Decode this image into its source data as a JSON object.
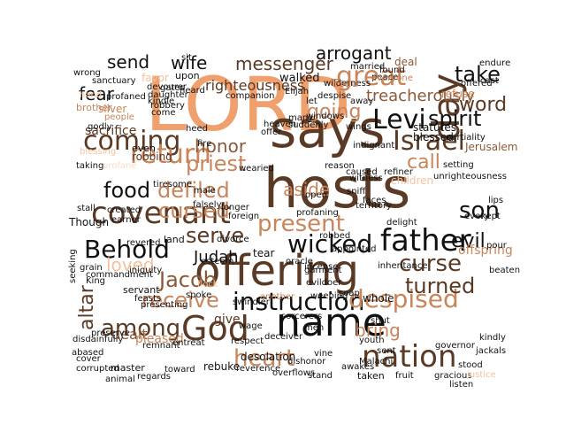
{
  "palette": {
    "black": "#111111",
    "dark_brown": "#5a3a24",
    "brown": "#8a5a38",
    "tan": "#c9845a",
    "peach": "#f0a06c",
    "light_peach": "#f6c29c",
    "pale": "#f9dcc4"
  },
  "words": [
    {
      "text": "LORD",
      "tone": "peach"
    },
    {
      "text": "says",
      "tone": "dark_brown"
    },
    {
      "text": "hosts",
      "tone": "dark_brown"
    },
    {
      "text": "offering",
      "tone": "dark_brown"
    },
    {
      "text": "name",
      "tone": "black"
    },
    {
      "text": "God",
      "tone": "dark_brown"
    },
    {
      "text": "father",
      "tone": "black"
    },
    {
      "text": "covenant",
      "tone": "dark_brown"
    },
    {
      "text": "day",
      "tone": "dark_brown"
    },
    {
      "text": "great",
      "tone": "tan"
    },
    {
      "text": "Israel",
      "tone": "dark_brown"
    },
    {
      "text": "Levi",
      "tone": "black"
    },
    {
      "text": "coming",
      "tone": "dark_brown"
    },
    {
      "text": "return",
      "tone": "tan"
    },
    {
      "text": "Behold",
      "tone": "black"
    },
    {
      "text": "instruction",
      "tone": "black"
    },
    {
      "text": "nation",
      "tone": "dark_brown"
    },
    {
      "text": "despised",
      "tone": "tan"
    },
    {
      "text": "heart",
      "tone": "tan"
    },
    {
      "text": "present",
      "tone": "tan"
    },
    {
      "text": "wicked",
      "tone": "black"
    },
    {
      "text": "son",
      "tone": "black"
    },
    {
      "text": "curse",
      "tone": "dark_brown"
    },
    {
      "text": "turned",
      "tone": "dark_brown"
    },
    {
      "text": "altar",
      "tone": "dark_brown"
    },
    {
      "text": "among",
      "tone": "dark_brown"
    },
    {
      "text": "receive",
      "tone": "tan"
    },
    {
      "text": "Jacob",
      "tone": "brown"
    },
    {
      "text": "defiled",
      "tone": "tan"
    },
    {
      "text": "cursed",
      "tone": "tan"
    },
    {
      "text": "priest",
      "tone": "tan"
    },
    {
      "text": "serve",
      "tone": "dark_brown"
    },
    {
      "text": "food",
      "tone": "black"
    },
    {
      "text": "going",
      "tone": "tan"
    },
    {
      "text": "word",
      "tone": "dark_brown"
    },
    {
      "text": "spirit",
      "tone": "black"
    },
    {
      "text": "take",
      "tone": "black"
    },
    {
      "text": "call",
      "tone": "tan"
    },
    {
      "text": "evil",
      "tone": "black"
    },
    {
      "text": "messenger",
      "tone": "dark_brown"
    },
    {
      "text": "arrogant",
      "tone": "black"
    },
    {
      "text": "send",
      "tone": "black"
    },
    {
      "text": "wife",
      "tone": "black"
    },
    {
      "text": "fear",
      "tone": "black"
    },
    {
      "text": "honor",
      "tone": "brown"
    },
    {
      "text": "aside",
      "tone": "tan"
    },
    {
      "text": "Judah",
      "tone": "black"
    },
    {
      "text": "loved",
      "tone": "light_peach"
    },
    {
      "text": "bring",
      "tone": "tan"
    },
    {
      "text": "dealt",
      "tone": "brown"
    },
    {
      "text": "treacherously",
      "tone": "brown"
    },
    {
      "text": "righteousness",
      "tone": "dark_brown"
    },
    {
      "text": "sacrifice",
      "tone": "dark_brown"
    },
    {
      "text": "blessed",
      "tone": "black"
    },
    {
      "text": "Jerusalem",
      "tone": "brown"
    },
    {
      "text": "children",
      "tone": "light_peach"
    },
    {
      "text": "pleased",
      "tone": "tan"
    },
    {
      "text": "commandment",
      "tone": "black"
    },
    {
      "text": "statutes",
      "tone": "black"
    },
    {
      "text": "offspring",
      "tone": "tan"
    },
    {
      "text": "give",
      "tone": "dark_brown"
    },
    {
      "text": "rebuke",
      "tone": "black"
    },
    {
      "text": "desolation",
      "tone": "black"
    },
    {
      "text": "walked",
      "tone": "black"
    },
    {
      "text": "wilderness",
      "tone": "black"
    },
    {
      "text": "heaven",
      "tone": "black"
    },
    {
      "text": "robbing",
      "tone": "dark_brown"
    },
    {
      "text": "even",
      "tone": "black"
    },
    {
      "text": "taking",
      "tone": "black"
    },
    {
      "text": "profane",
      "tone": "pale"
    },
    {
      "text": "Though",
      "tone": "black"
    },
    {
      "text": "stall",
      "tone": "black"
    },
    {
      "text": "created",
      "tone": "black"
    },
    {
      "text": "earner",
      "tone": "black"
    },
    {
      "text": "land",
      "tone": "black"
    },
    {
      "text": "revered",
      "tone": "black"
    },
    {
      "text": "divorce",
      "tone": "black"
    },
    {
      "text": "tear",
      "tone": "black"
    },
    {
      "text": "King",
      "tone": "black"
    },
    {
      "text": "servant",
      "tone": "black"
    },
    {
      "text": "master",
      "tone": "black"
    },
    {
      "text": "cover",
      "tone": "black"
    },
    {
      "text": "corrupted",
      "tone": "black"
    },
    {
      "text": "abased",
      "tone": "black"
    },
    {
      "text": "regards",
      "tone": "black"
    },
    {
      "text": "toward",
      "tone": "black"
    },
    {
      "text": "respect",
      "tone": "black"
    },
    {
      "text": "reverence",
      "tone": "black"
    },
    {
      "text": "overflows",
      "tone": "black"
    },
    {
      "text": "Malachi",
      "tone": "black"
    },
    {
      "text": "taken",
      "tone": "black"
    },
    {
      "text": "fruit",
      "tone": "black"
    },
    {
      "text": "gracious",
      "tone": "black"
    },
    {
      "text": "jackals",
      "tone": "black"
    },
    {
      "text": "kindly",
      "tone": "black"
    },
    {
      "text": "youth",
      "tone": "black"
    },
    {
      "text": "shut",
      "tone": "black"
    },
    {
      "text": "whole",
      "tone": "black"
    },
    {
      "text": "another",
      "tone": "tan"
    },
    {
      "text": "wage",
      "tone": "black"
    },
    {
      "text": "men",
      "tone": "black"
    },
    {
      "text": "spoke",
      "tone": "black"
    },
    {
      "text": "iniquity",
      "tone": "black"
    },
    {
      "text": "grain",
      "tone": "black"
    },
    {
      "text": "hand",
      "tone": "light_peach"
    },
    {
      "text": "brother",
      "tone": "tan"
    },
    {
      "text": "profaned",
      "tone": "black"
    },
    {
      "text": "robbery",
      "tone": "black"
    },
    {
      "text": "daughter",
      "tone": "black"
    },
    {
      "text": "devourer",
      "tone": "black"
    },
    {
      "text": "sanctuary",
      "tone": "black"
    },
    {
      "text": "wrong",
      "tone": "black"
    },
    {
      "text": "favor",
      "tone": "light_peach"
    },
    {
      "text": "upon",
      "tone": "black"
    },
    {
      "text": "deal",
      "tone": "brown"
    },
    {
      "text": "peace",
      "tone": "black"
    },
    {
      "text": "refiner",
      "tone": "black"
    },
    {
      "text": "away",
      "tone": "black"
    },
    {
      "text": "setting",
      "tone": "black"
    },
    {
      "text": "partiality",
      "tone": "black"
    },
    {
      "text": "every",
      "tone": "black"
    },
    {
      "text": "lips",
      "tone": "black"
    },
    {
      "text": "kept",
      "tone": "black"
    },
    {
      "text": "pour",
      "tone": "black"
    },
    {
      "text": "beaten",
      "tone": "black"
    },
    {
      "text": "unrighteousness",
      "tone": "black"
    },
    {
      "text": "Elijah",
      "tone": "black"
    },
    {
      "text": "godly",
      "tone": "black"
    },
    {
      "text": "people",
      "tone": "tan"
    },
    {
      "text": "come",
      "tone": "black"
    },
    {
      "text": "heed",
      "tone": "black"
    },
    {
      "text": "fire",
      "tone": "black"
    },
    {
      "text": "longer",
      "tone": "black"
    },
    {
      "text": "foreign",
      "tone": "black"
    },
    {
      "text": "oracle",
      "tone": "black"
    },
    {
      "text": "incense",
      "tone": "black"
    },
    {
      "text": "appointed",
      "tone": "black"
    },
    {
      "text": "delight",
      "tone": "black"
    },
    {
      "text": "territory",
      "tone": "black"
    },
    {
      "text": "inheritance",
      "tone": "black"
    },
    {
      "text": "endure",
      "tone": "black"
    },
    {
      "text": "cast",
      "tone": "black"
    },
    {
      "text": "refuse",
      "tone": "tan"
    },
    {
      "text": "offered",
      "tone": "black"
    },
    {
      "text": "witness",
      "tone": "black"
    },
    {
      "text": "caused",
      "tone": "black"
    },
    {
      "text": "wings",
      "tone": "black"
    },
    {
      "text": "sniff",
      "tone": "black"
    },
    {
      "text": "faces",
      "tone": "black"
    },
    {
      "text": "tiresome",
      "tone": "black"
    },
    {
      "text": "male",
      "tone": "black"
    },
    {
      "text": "falsely",
      "tone": "black"
    },
    {
      "text": "profaning",
      "tone": "black"
    },
    {
      "text": "swindler",
      "tone": "black"
    },
    {
      "text": "weeping",
      "tone": "black"
    },
    {
      "text": "soap",
      "tone": "black"
    },
    {
      "text": "sent",
      "tone": "black"
    },
    {
      "text": "awakes",
      "tone": "black"
    },
    {
      "text": "stand",
      "tone": "black"
    },
    {
      "text": "stood",
      "tone": "black"
    },
    {
      "text": "governor",
      "tone": "black"
    },
    {
      "text": "justice",
      "tone": "light_peach"
    },
    {
      "text": "listen",
      "tone": "black"
    },
    {
      "text": "vine",
      "tone": "black"
    },
    {
      "text": "robbed",
      "tone": "black"
    },
    {
      "text": "garment",
      "tone": "black"
    },
    {
      "text": "evildoer",
      "tone": "black"
    },
    {
      "text": "feasts",
      "tone": "black"
    },
    {
      "text": "flock",
      "tone": "light_peach"
    },
    {
      "text": "presenting",
      "tone": "black"
    },
    {
      "text": "animal",
      "tone": "black"
    },
    {
      "text": "remnant",
      "tone": "black"
    },
    {
      "text": "entreat",
      "tone": "black"
    },
    {
      "text": "preserve",
      "tone": "black"
    },
    {
      "text": "reason",
      "tone": "black"
    },
    {
      "text": "indignant",
      "tone": "black"
    },
    {
      "text": "despise",
      "tone": "black"
    },
    {
      "text": "let",
      "tone": "black"
    },
    {
      "text": "many",
      "tone": "black"
    },
    {
      "text": "suddenly",
      "tone": "black"
    },
    {
      "text": "windows",
      "tone": "black"
    },
    {
      "text": "wearied",
      "tone": "black"
    },
    {
      "text": "Esau",
      "tone": "tan"
    },
    {
      "text": "married",
      "tone": "black"
    },
    {
      "text": "found",
      "tone": "black"
    },
    {
      "text": "sit",
      "tone": "black"
    },
    {
      "text": "gates",
      "tone": "black"
    },
    {
      "text": "heard",
      "tone": "black"
    },
    {
      "text": "companion",
      "tone": "black"
    },
    {
      "text": "kindle",
      "tone": "black"
    },
    {
      "text": "silver",
      "tone": "tan"
    },
    {
      "text": "offer",
      "tone": "black"
    },
    {
      "text": "open",
      "tone": "black"
    },
    {
      "text": "esteem",
      "tone": "black"
    },
    {
      "text": "disdainfully",
      "tone": "black"
    },
    {
      "text": "deceiver",
      "tone": "black"
    },
    {
      "text": "blessing",
      "tone": "light_peach"
    },
    {
      "text": "dishonor",
      "tone": "black"
    },
    {
      "text": "everyone",
      "tone": "tan"
    },
    {
      "text": "sorcerers",
      "tone": "black"
    },
    {
      "text": "seeking",
      "tone": "black"
    }
  ]
}
